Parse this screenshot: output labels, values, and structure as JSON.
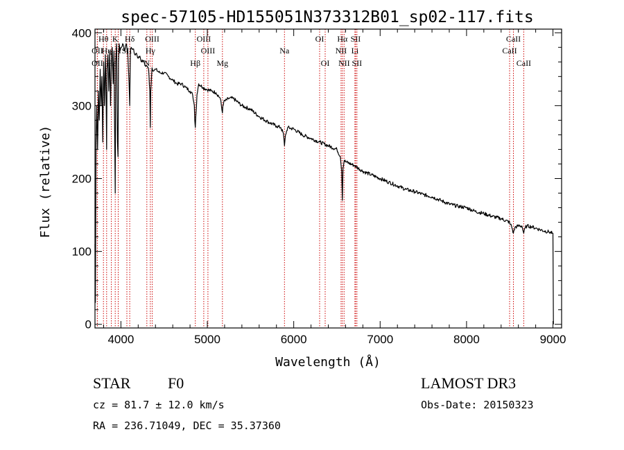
{
  "chart_data": {
    "type": "line",
    "title": "spec-57105-HD155051N373312B01_sp02-117.fits",
    "xlabel": "Wavelength (Å)",
    "ylabel": "Flux (relative)",
    "xlim": [
      3700,
      9100
    ],
    "ylim": [
      -5,
      405
    ],
    "xticks": [
      4000,
      5000,
      6000,
      7000,
      8000,
      9000
    ],
    "yticks": [
      0,
      100,
      200,
      300,
      400
    ],
    "xtick_labels": [
      "4000",
      "5000",
      "6000",
      "7000",
      "8000",
      "9000"
    ],
    "ytick_labels": [
      "0",
      "100",
      "200",
      "300",
      "400"
    ],
    "series": [
      {
        "name": "spectrum",
        "x": [
          3700,
          3705,
          3712,
          3720,
          3730,
          3740,
          3750,
          3760,
          3770,
          3780,
          3790,
          3800,
          3810,
          3820,
          3830,
          3835,
          3840,
          3850,
          3860,
          3870,
          3880,
          3890,
          3900,
          3910,
          3920,
          3930,
          3934,
          3940,
          3950,
          3960,
          3966,
          3972,
          3980,
          3990,
          4000,
          4020,
          4040,
          4060,
          4080,
          4095,
          4102,
          4110,
          4120,
          4140,
          4160,
          4180,
          4200,
          4220,
          4240,
          4260,
          4280,
          4300,
          4320,
          4335,
          4340,
          4345,
          4360,
          4380,
          4400,
          4450,
          4500,
          4550,
          4600,
          4650,
          4700,
          4750,
          4800,
          4830,
          4850,
          4855,
          4861,
          4867,
          4880,
          4900,
          4950,
          5000,
          5050,
          5100,
          5150,
          5175,
          5180,
          5190,
          5250,
          5300,
          5400,
          5500,
          5600,
          5700,
          5800,
          5850,
          5880,
          5893,
          5905,
          5930,
          6000,
          6100,
          6200,
          6300,
          6400,
          6500,
          6540,
          6555,
          6563,
          6570,
          6585,
          6600,
          6700,
          6800,
          6900,
          7000,
          7100,
          7200,
          7300,
          7400,
          7500,
          7600,
          7700,
          7800,
          7900,
          8000,
          8100,
          8200,
          8300,
          8400,
          8498,
          8500,
          8520,
          8542,
          8560,
          8600,
          8640,
          8662,
          8680,
          8700,
          8750,
          8800,
          8850,
          8900,
          8950,
          8990,
          9000,
          9005
        ],
        "y": [
          110,
          30,
          250,
          300,
          240,
          320,
          280,
          350,
          300,
          340,
          250,
          360,
          300,
          370,
          300,
          240,
          350,
          370,
          320,
          375,
          300,
          360,
          380,
          330,
          375,
          230,
          180,
          360,
          385,
          250,
          230,
          360,
          385,
          375,
          380,
          385,
          375,
          385,
          370,
          330,
          300,
          375,
          380,
          378,
          370,
          372,
          365,
          368,
          360,
          362,
          355,
          355,
          350,
          320,
          270,
          320,
          352,
          348,
          350,
          345,
          345,
          340,
          335,
          330,
          330,
          325,
          320,
          315,
          300,
          280,
          270,
          285,
          315,
          330,
          325,
          322,
          320,
          318,
          310,
          290,
          300,
          305,
          310,
          310,
          300,
          295,
          285,
          278,
          272,
          270,
          262,
          245,
          260,
          270,
          268,
          260,
          255,
          250,
          245,
          240,
          230,
          210,
          170,
          215,
          225,
          223,
          218,
          210,
          205,
          200,
          195,
          190,
          185,
          182,
          178,
          175,
          170,
          165,
          162,
          160,
          155,
          152,
          148,
          145,
          140,
          138,
          135,
          125,
          133,
          135,
          135,
          125,
          133,
          135,
          134,
          132,
          130,
          128,
          127,
          125,
          125,
          0
        ]
      }
    ],
    "line_markers": [
      {
        "label": "Hθ",
        "x": 3798,
        "row": 1
      },
      {
        "label": "OII",
        "x": 3727,
        "row": 2
      },
      {
        "label": "OII",
        "x": 3727,
        "row": 3
      },
      {
        "label": "Hη",
        "x": 3835,
        "row": 2
      },
      {
        "label": "Hε",
        "x": 3889,
        "row": 3
      },
      {
        "label": "K",
        "x": 3934,
        "row": 1
      },
      {
        "label": "H",
        "x": 3969,
        "row": 2
      },
      {
        "label": "SII",
        "x": 4069,
        "row": 2
      },
      {
        "label": "Hδ",
        "x": 4102,
        "row": 1
      },
      {
        "label": "OIII",
        "x": 4363,
        "row": 1
      },
      {
        "label": "Hγ",
        "x": 4340,
        "row": 2
      },
      {
        "label": "N",
        "x": 4300,
        "row": 3
      },
      {
        "label": "OIII",
        "x": 4959,
        "row": 1
      },
      {
        "label": "OIII",
        "x": 5007,
        "row": 2
      },
      {
        "label": "Hβ",
        "x": 4861,
        "row": 3
      },
      {
        "label": "Mg",
        "x": 5175,
        "row": 3
      },
      {
        "label": "Na",
        "x": 5893,
        "row": 2
      },
      {
        "label": "OI",
        "x": 6300,
        "row": 1
      },
      {
        "label": "OI",
        "x": 6364,
        "row": 3
      },
      {
        "label": "Hα",
        "x": 6563,
        "row": 1
      },
      {
        "label": "SII",
        "x": 6716,
        "row": 1
      },
      {
        "label": "NII",
        "x": 6548,
        "row": 2
      },
      {
        "label": "Li",
        "x": 6708,
        "row": 2
      },
      {
        "label": "NII",
        "x": 6583,
        "row": 3
      },
      {
        "label": "SII",
        "x": 6731,
        "row": 3
      },
      {
        "label": "CaII",
        "x": 8542,
        "row": 1
      },
      {
        "label": "CaII",
        "x": 8498,
        "row": 2
      },
      {
        "label": "CaII",
        "x": 8662,
        "row": 3
      }
    ],
    "marker_color": "#cc0000",
    "line_color": "#000000"
  },
  "info": {
    "object_type": "STAR",
    "subclass": "F0",
    "survey": "LAMOST DR3",
    "cz": "cz = 81.7 ± 12.0 km/s",
    "obs_date": "Obs-Date: 20150323",
    "coords": "RA = 236.71049, DEC =  35.37360"
  }
}
